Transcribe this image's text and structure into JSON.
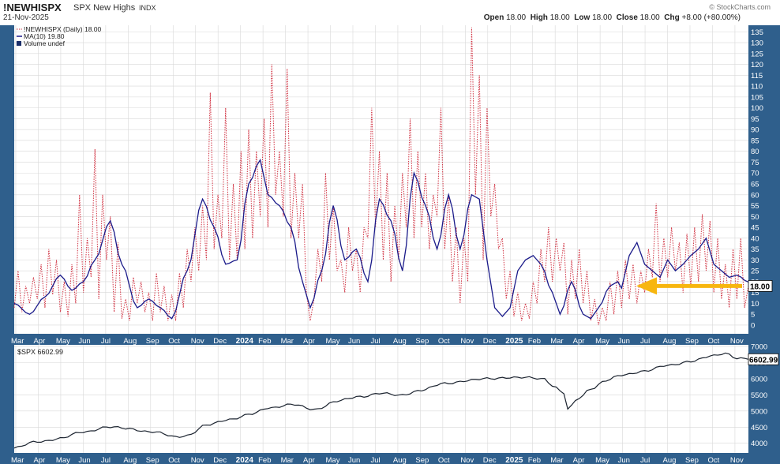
{
  "header": {
    "symbol": "!NEWHISPX",
    "description": "SPX New Highs",
    "exchange": "INDX",
    "date": "21-Nov-2025",
    "brand": "© StockCharts.com",
    "ohlc": [
      {
        "label": "Open",
        "value": "18.00"
      },
      {
        "label": "High",
        "value": "18.00"
      },
      {
        "label": "Low",
        "value": "18.00"
      },
      {
        "label": "Close",
        "value": "18.00"
      },
      {
        "label": "Chg",
        "value": "+8.00 (+80.00%)"
      }
    ]
  },
  "legend_top": [
    {
      "text": "!NEWHISPX (Daily) 18.00",
      "color": "#d03040",
      "style": "dotted"
    },
    {
      "text": "MA(10) 19.80",
      "color": "#1b1b8a",
      "style": "solid"
    },
    {
      "text": "Volume undef",
      "color": "#1b2f6a",
      "style": "bar"
    }
  ],
  "legend_bottom": {
    "text": "$SPX 6602.99"
  },
  "colors": {
    "frame": "#2f5f8c",
    "daily": "#d03040",
    "ma": "#1b1b8a",
    "spx": "#1c2430",
    "arrow": "#f7b60f",
    "grid": "#d8d8d8"
  },
  "chart_data": [
    {
      "type": "line",
      "ylim": [
        -4,
        138
      ],
      "y_ticks": [
        0,
        5,
        10,
        15,
        20,
        25,
        30,
        35,
        40,
        45,
        50,
        55,
        60,
        65,
        70,
        75,
        80,
        85,
        90,
        95,
        100,
        105,
        110,
        115,
        120,
        125,
        130,
        135
      ],
      "last_value_label": "18.00",
      "annotation": "yellow arrow pointing to last value",
      "series": [
        {
          "name": "!NEWHISPX (Daily)",
          "style": "dotted"
        },
        {
          "name": "MA(10)",
          "style": "solid"
        }
      ],
      "anchors_daily": [
        [
          0,
          8
        ],
        [
          1,
          25
        ],
        [
          2,
          6
        ],
        [
          3,
          18
        ],
        [
          4,
          10
        ],
        [
          5,
          22
        ],
        [
          6,
          12
        ],
        [
          7,
          28
        ],
        [
          8,
          8
        ],
        [
          9,
          35
        ],
        [
          10,
          14
        ],
        [
          11,
          30
        ],
        [
          12,
          6
        ],
        [
          13,
          20
        ],
        [
          14,
          4
        ],
        [
          15,
          28
        ],
        [
          16,
          10
        ],
        [
          17,
          60
        ],
        [
          18,
          15
        ],
        [
          19,
          40
        ],
        [
          20,
          22
        ],
        [
          21,
          81
        ],
        [
          22,
          12
        ],
        [
          23,
          60
        ],
        [
          24,
          30
        ],
        [
          25,
          50
        ],
        [
          26,
          6
        ],
        [
          27,
          38
        ],
        [
          28,
          3
        ],
        [
          29,
          12
        ],
        [
          30,
          2
        ],
        [
          31,
          22
        ],
        [
          32,
          10
        ],
        [
          33,
          20
        ],
        [
          34,
          6
        ],
        [
          35,
          15
        ],
        [
          36,
          2
        ],
        [
          37,
          24
        ],
        [
          38,
          6
        ],
        [
          39,
          18
        ],
        [
          40,
          2
        ],
        [
          41,
          14
        ],
        [
          42,
          2
        ],
        [
          43,
          24
        ],
        [
          44,
          8
        ],
        [
          45,
          35
        ],
        [
          46,
          20
        ],
        [
          47,
          45
        ],
        [
          48,
          25
        ],
        [
          49,
          55
        ],
        [
          50,
          30
        ],
        [
          51,
          107
        ],
        [
          52,
          35
        ],
        [
          53,
          60
        ],
        [
          54,
          40
        ],
        [
          55,
          100
        ],
        [
          56,
          30
        ],
        [
          57,
          65
        ],
        [
          58,
          30
        ],
        [
          59,
          80
        ],
        [
          60,
          35
        ],
        [
          61,
          90
        ],
        [
          62,
          40
        ],
        [
          63,
          80
        ],
        [
          64,
          50
        ],
        [
          65,
          95
        ],
        [
          66,
          45
        ],
        [
          67,
          120
        ],
        [
          68,
          60
        ],
        [
          69,
          80
        ],
        [
          70,
          50
        ],
        [
          71,
          118
        ],
        [
          72,
          40
        ],
        [
          73,
          70
        ],
        [
          74,
          40
        ],
        [
          75,
          65
        ],
        [
          76,
          15
        ],
        [
          77,
          2
        ],
        [
          78,
          12
        ],
        [
          79,
          35
        ],
        [
          80,
          20
        ],
        [
          81,
          70
        ],
        [
          82,
          30
        ],
        [
          83,
          55
        ],
        [
          84,
          25
        ],
        [
          85,
          30
        ],
        [
          86,
          15
        ],
        [
          87,
          45
        ],
        [
          88,
          25
        ],
        [
          89,
          35
        ],
        [
          90,
          15
        ],
        [
          91,
          45
        ],
        [
          92,
          40
        ],
        [
          93,
          100
        ],
        [
          94,
          45
        ],
        [
          95,
          80
        ],
        [
          96,
          30
        ],
        [
          97,
          70
        ],
        [
          98,
          20
        ],
        [
          99,
          55
        ],
        [
          100,
          30
        ],
        [
          101,
          70
        ],
        [
          102,
          45
        ],
        [
          103,
          95
        ],
        [
          104,
          40
        ],
        [
          105,
          80
        ],
        [
          106,
          45
        ],
        [
          107,
          70
        ],
        [
          108,
          35
        ],
        [
          109,
          60
        ],
        [
          110,
          50
        ],
        [
          111,
          100
        ],
        [
          112,
          35
        ],
        [
          113,
          60
        ],
        [
          114,
          20
        ],
        [
          115,
          45
        ],
        [
          116,
          10
        ],
        [
          117,
          40
        ],
        [
          118,
          20
        ],
        [
          119,
          137
        ],
        [
          120,
          60
        ],
        [
          121,
          115
        ],
        [
          122,
          30
        ],
        [
          123,
          100
        ],
        [
          124,
          50
        ],
        [
          125,
          65
        ],
        [
          126,
          35
        ],
        [
          127,
          40
        ],
        [
          128,
          12
        ],
        [
          129,
          25
        ],
        [
          130,
          4
        ],
        [
          131,
          15
        ],
        [
          132,
          2
        ],
        [
          133,
          10
        ],
        [
          134,
          3
        ],
        [
          135,
          20
        ],
        [
          136,
          10
        ],
        [
          137,
          35
        ],
        [
          138,
          20
        ],
        [
          139,
          45
        ],
        [
          140,
          20
        ],
        [
          141,
          40
        ],
        [
          142,
          25
        ],
        [
          143,
          38
        ],
        [
          144,
          5
        ],
        [
          145,
          30
        ],
        [
          146,
          12
        ],
        [
          147,
          35
        ],
        [
          148,
          10
        ],
        [
          149,
          25
        ],
        [
          150,
          2
        ],
        [
          151,
          12
        ],
        [
          152,
          0
        ],
        [
          153,
          8
        ],
        [
          154,
          2
        ],
        [
          155,
          20
        ],
        [
          156,
          5
        ],
        [
          157,
          25
        ],
        [
          158,
          8
        ],
        [
          159,
          30
        ],
        [
          160,
          12
        ],
        [
          161,
          28
        ],
        [
          162,
          10
        ],
        [
          163,
          25
        ],
        [
          164,
          15
        ],
        [
          165,
          35
        ],
        [
          166,
          22
        ],
        [
          167,
          56
        ],
        [
          168,
          20
        ],
        [
          169,
          40
        ],
        [
          170,
          22
        ],
        [
          171,
          45
        ],
        [
          172,
          25
        ],
        [
          173,
          38
        ],
        [
          174,
          15
        ],
        [
          175,
          42
        ],
        [
          176,
          18
        ],
        [
          177,
          45
        ],
        [
          178,
          20
        ],
        [
          179,
          51
        ],
        [
          180,
          25
        ],
        [
          181,
          48
        ],
        [
          182,
          15
        ],
        [
          183,
          40
        ],
        [
          184,
          12
        ],
        [
          185,
          28
        ],
        [
          186,
          8
        ],
        [
          187,
          35
        ],
        [
          188,
          12
        ],
        [
          189,
          40
        ],
        [
          190,
          8
        ],
        [
          191,
          18
        ]
      ],
      "anchors_ma": [
        [
          0,
          10
        ],
        [
          4,
          5
        ],
        [
          8,
          13
        ],
        [
          12,
          23
        ],
        [
          15,
          16
        ],
        [
          18,
          20
        ],
        [
          21,
          30
        ],
        [
          25,
          48
        ],
        [
          28,
          28
        ],
        [
          32,
          8
        ],
        [
          35,
          12
        ],
        [
          38,
          8
        ],
        [
          41,
          3
        ],
        [
          45,
          25
        ],
        [
          49,
          58
        ],
        [
          52,
          45
        ],
        [
          55,
          28
        ],
        [
          58,
          30
        ],
        [
          61,
          65
        ],
        [
          64,
          76
        ],
        [
          66,
          60
        ],
        [
          69,
          55
        ],
        [
          72,
          45
        ],
        [
          75,
          20
        ],
        [
          77,
          8
        ],
        [
          80,
          25
        ],
        [
          83,
          55
        ],
        [
          86,
          30
        ],
        [
          89,
          35
        ],
        [
          92,
          20
        ],
        [
          95,
          58
        ],
        [
          98,
          48
        ],
        [
          101,
          25
        ],
        [
          104,
          70
        ],
        [
          107,
          55
        ],
        [
          110,
          35
        ],
        [
          113,
          60
        ],
        [
          116,
          35
        ],
        [
          119,
          60
        ],
        [
          121,
          58
        ],
        [
          123,
          30
        ],
        [
          125,
          8
        ],
        [
          127,
          4
        ],
        [
          129,
          8
        ],
        [
          131,
          25
        ],
        [
          133,
          30
        ],
        [
          135,
          32
        ],
        [
          137,
          28
        ],
        [
          140,
          15
        ],
        [
          142,
          5
        ],
        [
          145,
          20
        ],
        [
          148,
          5
        ],
        [
          150,
          3
        ],
        [
          152,
          8
        ],
        [
          155,
          18
        ],
        [
          157,
          20
        ],
        [
          158,
          17
        ],
        [
          160,
          32
        ],
        [
          162,
          38
        ],
        [
          164,
          28
        ],
        [
          166,
          25
        ],
        [
          168,
          22
        ],
        [
          170,
          30
        ],
        [
          172,
          25
        ],
        [
          174,
          28
        ],
        [
          176,
          32
        ],
        [
          178,
          35
        ],
        [
          180,
          40
        ],
        [
          182,
          28
        ],
        [
          184,
          25
        ],
        [
          186,
          22
        ],
        [
          188,
          23
        ],
        [
          191,
          19.8
        ]
      ]
    },
    {
      "type": "line",
      "ylim": [
        3700,
        7050
      ],
      "y_ticks": [
        4000,
        4500,
        5000,
        5500,
        6000,
        6500,
        7000
      ],
      "last_value_label": "6602.99",
      "series": [
        {
          "name": "$SPX",
          "style": "solid"
        }
      ],
      "anchors_spx": [
        [
          0,
          3850
        ],
        [
          6,
          4050
        ],
        [
          12,
          4150
        ],
        [
          18,
          4350
        ],
        [
          24,
          4500
        ],
        [
          30,
          4450
        ],
        [
          36,
          4350
        ],
        [
          42,
          4200
        ],
        [
          45,
          4250
        ],
        [
          50,
          4550
        ],
        [
          56,
          4750
        ],
        [
          62,
          4900
        ],
        [
          66,
          5100
        ],
        [
          72,
          5200
        ],
        [
          78,
          5050
        ],
        [
          84,
          5300
        ],
        [
          90,
          5450
        ],
        [
          95,
          5550
        ],
        [
          100,
          5480
        ],
        [
          106,
          5650
        ],
        [
          112,
          5850
        ],
        [
          118,
          5950
        ],
        [
          124,
          6000
        ],
        [
          128,
          6050
        ],
        [
          132,
          6030
        ],
        [
          138,
          6000
        ],
        [
          140,
          5800
        ],
        [
          143,
          5550
        ],
        [
          144,
          5050
        ],
        [
          147,
          5400
        ],
        [
          150,
          5700
        ],
        [
          154,
          5950
        ],
        [
          158,
          6100
        ],
        [
          164,
          6250
        ],
        [
          170,
          6400
        ],
        [
          176,
          6550
        ],
        [
          182,
          6700
        ],
        [
          185,
          6800
        ],
        [
          188,
          6650
        ],
        [
          191,
          6602.99
        ]
      ]
    }
  ],
  "x_axis": {
    "months_top": [
      "Mar",
      "Apr",
      "May",
      "Jun",
      "Jul",
      "Aug",
      "Sep",
      "Oct",
      "Nov",
      "Dec",
      "2024",
      "Feb",
      "Mar",
      "Apr",
      "May",
      "Jun",
      "Jul",
      "Aug",
      "Sep",
      "Oct",
      "Nov",
      "Dec",
      "2025",
      "Feb",
      "Mar",
      "Apr",
      "May",
      "Jun",
      "Jul",
      "Aug",
      "Sep",
      "Oct",
      "Nov"
    ],
    "months_bottom": [
      "Mar",
      "Apr",
      "May",
      "Jun",
      "Jul",
      "Aug",
      "Sep",
      "Oct",
      "Nov",
      "Dec",
      "2024",
      "Feb",
      "Mar",
      "Apr",
      "May",
      "Jun",
      "Jul",
      "Aug",
      "Sep",
      "Oct",
      "Nov",
      "Dec",
      "2025",
      "Feb",
      "Mar",
      "Apr",
      "May",
      "Jun",
      "Jul",
      "Aug",
      "Sep",
      "Oct",
      "Nov"
    ],
    "bold_labels": [
      "2024",
      "2025"
    ]
  }
}
